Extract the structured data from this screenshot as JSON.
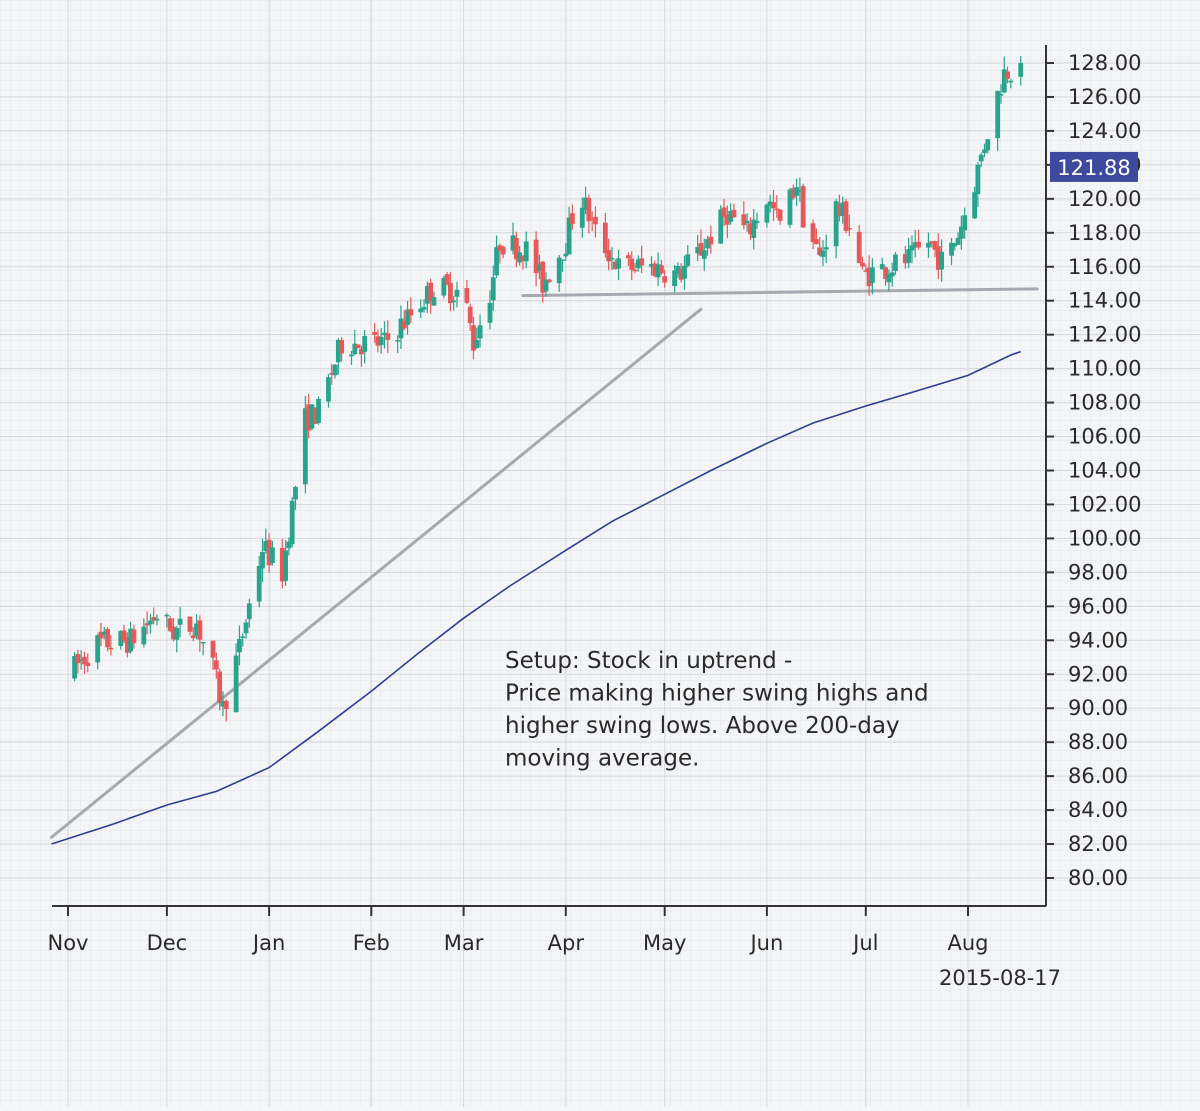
{
  "chart_data": {
    "type": "candlestick",
    "title": "",
    "xlabel": "",
    "ylabel": "",
    "ylim": [
      79,
      129
    ],
    "y_ticks": [
      "80.00",
      "82.00",
      "84.00",
      "86.00",
      "88.00",
      "90.00",
      "92.00",
      "94.00",
      "96.00",
      "98.00",
      "100.00",
      "102.00",
      "104.00",
      "106.00",
      "108.00",
      "110.00",
      "112.00",
      "114.00",
      "116.00",
      "118.00",
      "120.00",
      "122.00",
      "124.00",
      "126.00",
      "128.00"
    ],
    "x_ticks": [
      {
        "label": "Nov",
        "date": "2014-11-01"
      },
      {
        "label": "Dec",
        "date": "2014-12-01"
      },
      {
        "label": "Jan",
        "date": "2015-01-01"
      },
      {
        "label": "Feb",
        "date": "2015-02-01"
      },
      {
        "label": "Mar",
        "date": "2015-03-01"
      },
      {
        "label": "Apr",
        "date": "2015-04-01"
      },
      {
        "label": "May",
        "date": "2015-05-01"
      },
      {
        "label": "Jun",
        "date": "2015-06-01"
      },
      {
        "label": "Jul",
        "date": "2015-07-01"
      },
      {
        "label": "Aug",
        "date": "2015-08-01"
      }
    ],
    "last_date": "2015-08-17",
    "last_price": "121.88",
    "grid": true,
    "colors": {
      "up": "#2aa38c",
      "down": "#e45a5a",
      "moving_average": "#2f3d8f",
      "trendline": "#a8a8b0",
      "price_tag": "#3d4a9e"
    },
    "annotation": [
      "Setup: Stock in uptrend -",
      "Price making higher swing highs and",
      "higher swing lows. Above 200-day",
      "moving average."
    ],
    "trendlines": [
      {
        "start": {
          "date": "2014-10-27",
          "value": 82.4
        },
        "end": {
          "date": "2015-05-12",
          "value": 113.5
        }
      },
      {
        "start": {
          "date": "2015-03-19",
          "value": 114.3
        },
        "end": {
          "date": "2015-08-22",
          "value": 114.7
        }
      }
    ],
    "moving_average": {
      "name": "200-day moving average",
      "points": [
        {
          "date": "2014-10-27",
          "value": 82.0
        },
        {
          "date": "2014-11-15",
          "value": 83.2
        },
        {
          "date": "2014-12-01",
          "value": 84.3
        },
        {
          "date": "2014-12-16",
          "value": 85.1
        },
        {
          "date": "2015-01-01",
          "value": 86.5
        },
        {
          "date": "2015-01-15",
          "value": 88.5
        },
        {
          "date": "2015-02-01",
          "value": 91.0
        },
        {
          "date": "2015-02-15",
          "value": 93.2
        },
        {
          "date": "2015-03-01",
          "value": 95.3
        },
        {
          "date": "2015-03-15",
          "value": 97.2
        },
        {
          "date": "2015-04-01",
          "value": 99.3
        },
        {
          "date": "2015-04-15",
          "value": 101.0
        },
        {
          "date": "2015-05-01",
          "value": 102.6
        },
        {
          "date": "2015-05-15",
          "value": 104.0
        },
        {
          "date": "2015-06-01",
          "value": 105.6
        },
        {
          "date": "2015-06-15",
          "value": 106.8
        },
        {
          "date": "2015-07-01",
          "value": 107.8
        },
        {
          "date": "2015-07-15",
          "value": 108.6
        },
        {
          "date": "2015-08-01",
          "value": 109.6
        },
        {
          "date": "2015-08-14",
          "value": 110.8
        },
        {
          "date": "2015-08-17",
          "value": 111.0
        }
      ]
    },
    "price_anchors": [
      {
        "date": "2014-11-01",
        "value": 92.0
      },
      {
        "date": "2014-11-10",
        "value": 93.8
      },
      {
        "date": "2014-11-20",
        "value": 94.0
      },
      {
        "date": "2014-11-28",
        "value": 95.5
      },
      {
        "date": "2014-12-03",
        "value": 94.5
      },
      {
        "date": "2014-12-10",
        "value": 95.0
      },
      {
        "date": "2014-12-15",
        "value": 92.3
      },
      {
        "date": "2014-12-18",
        "value": 90.0
      },
      {
        "date": "2014-12-23",
        "value": 93.5
      },
      {
        "date": "2014-12-30",
        "value": 99.5
      },
      {
        "date": "2015-01-05",
        "value": 98.0
      },
      {
        "date": "2015-01-12",
        "value": 107.0
      },
      {
        "date": "2015-01-16",
        "value": 107.5
      },
      {
        "date": "2015-01-23",
        "value": 111.5
      },
      {
        "date": "2015-02-05",
        "value": 111.5
      },
      {
        "date": "2015-02-12",
        "value": 113.0
      },
      {
        "date": "2015-02-20",
        "value": 114.8
      },
      {
        "date": "2015-03-01",
        "value": 114.5
      },
      {
        "date": "2015-03-04",
        "value": 111.5
      },
      {
        "date": "2015-03-09",
        "value": 114.5
      },
      {
        "date": "2015-03-12",
        "value": 117.5
      },
      {
        "date": "2015-03-20",
        "value": 117.0
      },
      {
        "date": "2015-03-25",
        "value": 115.0
      },
      {
        "date": "2015-04-01",
        "value": 117.5
      },
      {
        "date": "2015-04-05",
        "value": 120.5
      },
      {
        "date": "2015-04-10",
        "value": 118.0
      },
      {
        "date": "2015-04-17",
        "value": 116.0
      },
      {
        "date": "2015-04-28",
        "value": 116.0
      },
      {
        "date": "2015-05-05",
        "value": 115.5
      },
      {
        "date": "2015-05-12",
        "value": 117.0
      },
      {
        "date": "2015-05-20",
        "value": 119.2
      },
      {
        "date": "2015-05-26",
        "value": 118.0
      },
      {
        "date": "2015-06-01",
        "value": 120.0
      },
      {
        "date": "2015-06-05",
        "value": 118.5
      },
      {
        "date": "2015-06-10",
        "value": 121.0
      },
      {
        "date": "2015-06-12",
        "value": 119.0
      },
      {
        "date": "2015-06-17",
        "value": 116.5
      },
      {
        "date": "2015-06-22",
        "value": 119.5
      },
      {
        "date": "2015-06-26",
        "value": 118.5
      },
      {
        "date": "2015-06-30",
        "value": 115.5
      },
      {
        "date": "2015-07-08",
        "value": 116.0
      },
      {
        "date": "2015-07-15",
        "value": 116.5
      },
      {
        "date": "2015-07-20",
        "value": 117.5
      },
      {
        "date": "2015-07-25",
        "value": 116.0
      },
      {
        "date": "2015-07-30",
        "value": 118.5
      },
      {
        "date": "2015-08-03",
        "value": 121.0
      },
      {
        "date": "2015-08-07",
        "value": 124.0
      },
      {
        "date": "2015-08-12",
        "value": 127.5
      },
      {
        "date": "2015-08-17",
        "value": 128.0
      }
    ]
  }
}
